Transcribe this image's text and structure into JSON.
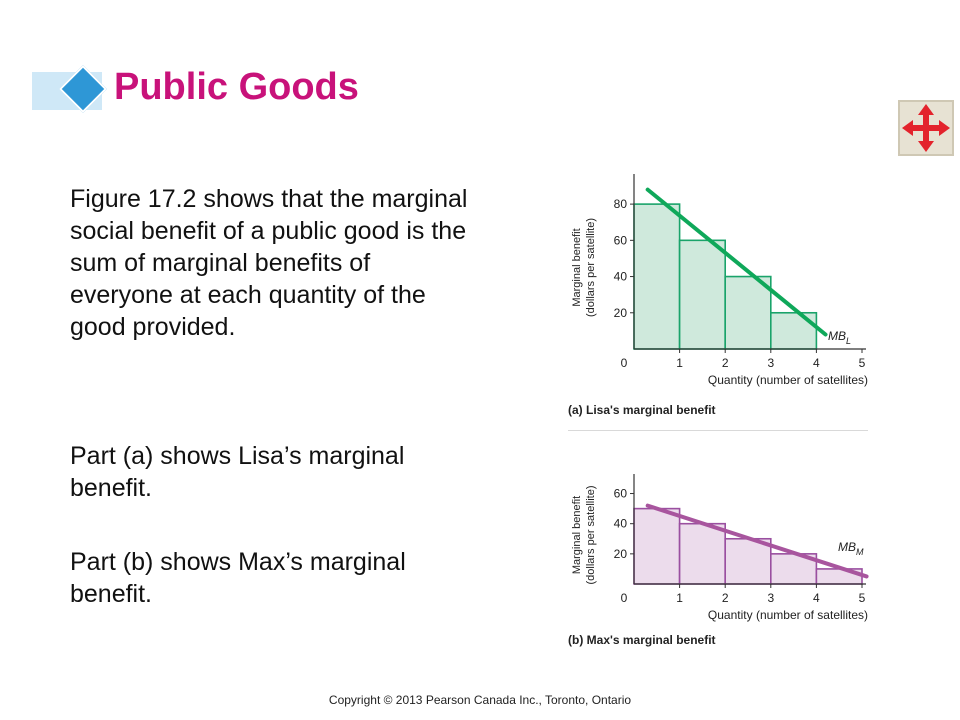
{
  "slide": {
    "title": "Public Goods",
    "paragraphs": [
      "Figure 17.2 shows that the marginal social benefit of a public good is the sum of marginal benefits of everyone at each quantity of the good provided.",
      "Part (a) shows Lisa’s marginal benefit.",
      "Part (b) shows Max’s marginal benefit."
    ],
    "copyright": "Copyright © 2013 Pearson Canada Inc., Toronto, Ontario",
    "nav_icon": "four-way-arrows-icon",
    "colors": {
      "title": "#c8127a",
      "accent": "#2e97d6"
    }
  },
  "chart_data": [
    {
      "type": "bar",
      "caption": "(a) Lisa's marginal benefit",
      "xlabel": "Quantity (number of satellites)",
      "ylabel_line1": "Marginal benefit",
      "ylabel_line2": "(dollars per satellite)",
      "x_ticks": [
        0,
        1,
        2,
        3,
        4,
        5
      ],
      "y_ticks": [
        20,
        40,
        60,
        80
      ],
      "xlim": [
        0,
        5
      ],
      "ylim": [
        0,
        90
      ],
      "bars": [
        {
          "from": 0,
          "to": 1,
          "value": 80
        },
        {
          "from": 1,
          "to": 2,
          "value": 60
        },
        {
          "from": 2,
          "to": 3,
          "value": 40
        },
        {
          "from": 3,
          "to": 4,
          "value": 20
        }
      ],
      "curve": {
        "label": "MB",
        "sub": "L",
        "from": [
          0.3,
          88
        ],
        "to": [
          4.2,
          8
        ]
      },
      "colors": {
        "fill": "#cfe9dc",
        "stroke": "#1aa36a",
        "line": "#0fa85a"
      }
    },
    {
      "type": "bar",
      "caption": "(b) Max's marginal benefit",
      "xlabel": "Quantity (number of satellites)",
      "ylabel_line1": "Marginal benefit",
      "ylabel_line2": "(dollars per satellite)",
      "x_ticks": [
        0,
        1,
        2,
        3,
        4,
        5
      ],
      "y_ticks": [
        20,
        40,
        60
      ],
      "xlim": [
        0,
        5
      ],
      "ylim": [
        0,
        65
      ],
      "bars": [
        {
          "from": 0,
          "to": 1,
          "value": 50
        },
        {
          "from": 1,
          "to": 2,
          "value": 40
        },
        {
          "from": 2,
          "to": 3,
          "value": 30
        },
        {
          "from": 3,
          "to": 4,
          "value": 20
        },
        {
          "from": 4,
          "to": 5,
          "value": 10
        }
      ],
      "curve": {
        "label": "MB",
        "sub": "M",
        "from": [
          0.3,
          52
        ],
        "to": [
          5.1,
          5
        ]
      },
      "colors": {
        "fill": "#ecdcec",
        "stroke": "#9a4fa0",
        "line": "#a8559e"
      }
    }
  ]
}
